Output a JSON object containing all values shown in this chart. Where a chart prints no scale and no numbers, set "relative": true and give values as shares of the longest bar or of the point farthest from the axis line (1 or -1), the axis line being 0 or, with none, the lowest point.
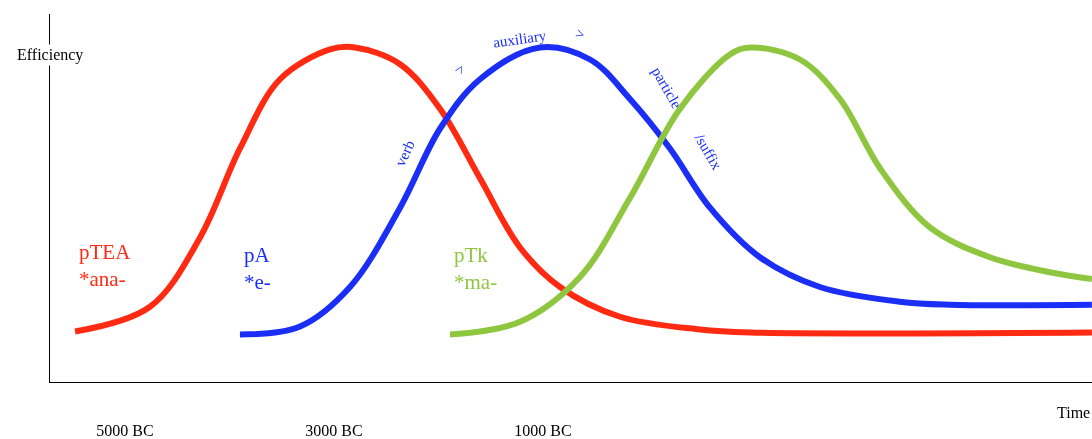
{
  "chart_data": {
    "type": "line",
    "relative": true,
    "xlabel": "Time",
    "ylabel": "Efficiency",
    "xlim": [
      -5718,
      4254
    ],
    "xticks": [
      {
        "value": -5000,
        "label": "5000 BC"
      },
      {
        "value": -3000,
        "label": "3000 BC"
      },
      {
        "value": -1000,
        "label": "1000 BC"
      }
    ],
    "legend": false,
    "marker": "none",
    "line_style": "solid",
    "series": [
      {
        "name": "pTEA\n*ana-",
        "color": "#ff2a12",
        "x": [
          -5478,
          -4761,
          -4282,
          -3900,
          -3517,
          -3038,
          -2799,
          -2368,
          -1986,
          -1603,
          -1220,
          -837,
          -263,
          502,
          981,
          4253
        ],
        "values": [
          0.151,
          0.225,
          0.432,
          0.698,
          0.905,
          0.994,
          1,
          0.95,
          0.817,
          0.609,
          0.402,
          0.284,
          0.195,
          0.157,
          0.148,
          0.148
        ]
      },
      {
        "name": "pA\n*e-",
        "color": "#1a2ef5",
        "x": [
          -3900,
          -3325,
          -2847,
          -2368,
          -1986,
          -1603,
          -1029,
          -550,
          -168,
          215,
          598,
          1076,
          1650,
          2416,
          2894,
          4253
        ],
        "values": [
          0.142,
          0.166,
          0.284,
          0.521,
          0.757,
          0.905,
          1,
          0.964,
          0.846,
          0.698,
          0.521,
          0.373,
          0.284,
          0.24,
          0.231,
          0.231
        ]
      },
      {
        "name": "pTk\n*ma-",
        "color": "#8ec63f",
        "x": [
          -1890,
          -1220,
          -646,
          -168,
          311,
          789,
          981,
          1459,
          1842,
          2225,
          2703,
          3277,
          3851,
          4253
        ],
        "values": [
          0.142,
          0.18,
          0.314,
          0.55,
          0.817,
          0.979,
          1,
          0.964,
          0.846,
          0.639,
          0.462,
          0.373,
          0.328,
          0.308
        ]
      }
    ],
    "annotations": [
      "verb",
      ">",
      "auxiliary",
      ">",
      "particle",
      "/suffix"
    ]
  }
}
